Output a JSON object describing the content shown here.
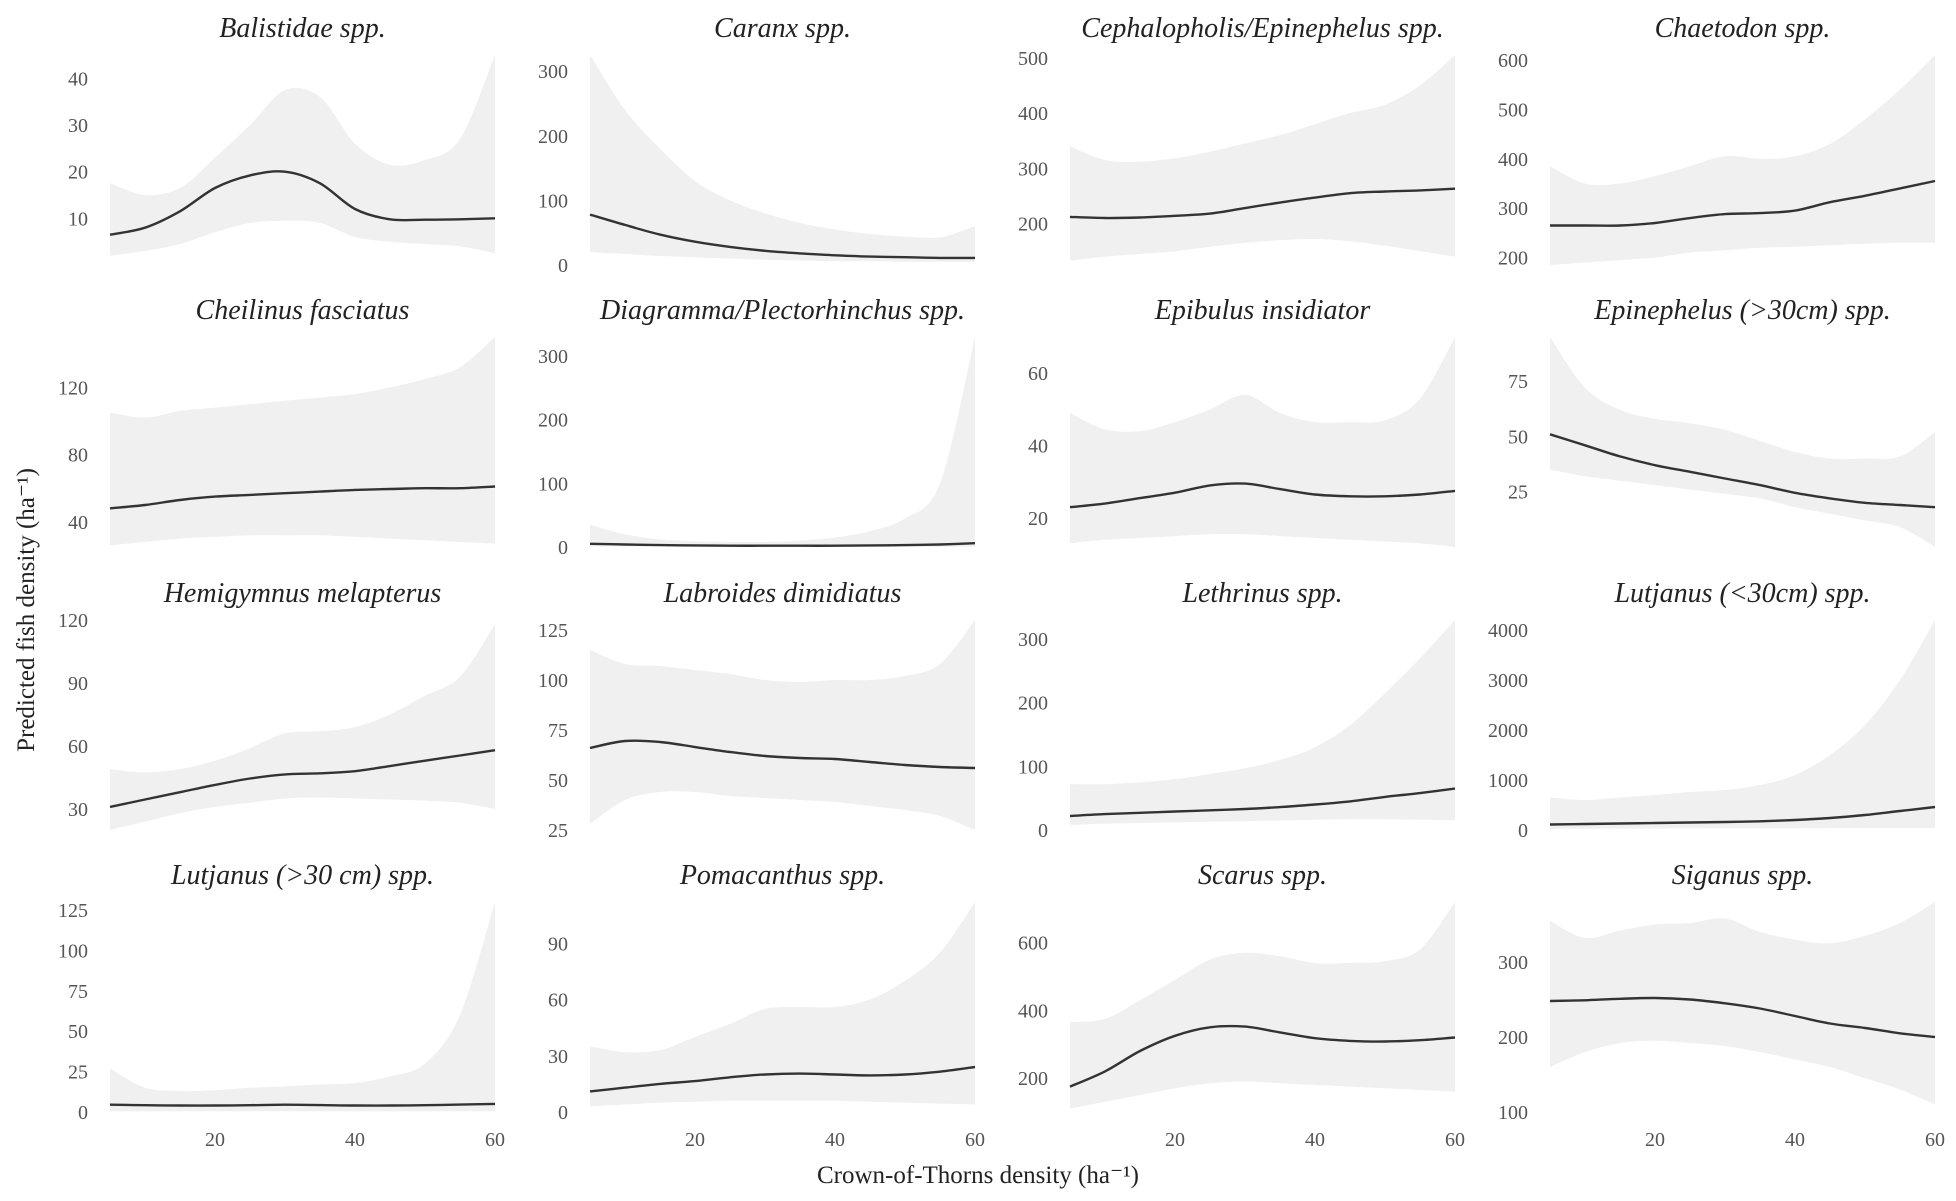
{
  "figure": {
    "xlabel": "Crown-of-Thorns density (ha⁻¹)",
    "ylabel": "Predicted fish density (ha⁻¹)",
    "colors": {
      "line": "#333333",
      "ribbon": "#f0f0f0",
      "tick": "#555555",
      "title": "#222222"
    }
  },
  "chart_data": [
    {
      "type": "line",
      "title": "Balistidae spp.",
      "xlim": [
        5,
        60
      ],
      "ylim": [
        0,
        45
      ],
      "yticks": [
        10,
        20,
        30,
        40
      ],
      "series": [
        {
          "x": [
            5,
            10,
            15,
            20,
            25,
            30,
            35,
            40,
            45,
            50,
            55,
            60
          ],
          "y": [
            6.5,
            8,
            11.5,
            16.5,
            19.2,
            20,
            17.5,
            12,
            9.8,
            9.7,
            9.8,
            10
          ],
          "lower": [
            2,
            3,
            4.5,
            7,
            9,
            9.5,
            9,
            6,
            5,
            4.5,
            4,
            2.5
          ],
          "upper": [
            17.5,
            15,
            16.5,
            23,
            30,
            37.5,
            36,
            26,
            21.5,
            22.5,
            27,
            45
          ]
        }
      ]
    },
    {
      "type": "line",
      "title": "Caranx spp.",
      "xlim": [
        5,
        60
      ],
      "ylim": [
        0,
        325
      ],
      "yticks": [
        0,
        100,
        200,
        300
      ],
      "series": [
        {
          "x": [
            5,
            10,
            15,
            20,
            25,
            30,
            35,
            40,
            45,
            50,
            55,
            60
          ],
          "y": [
            78,
            62,
            47,
            36,
            28,
            22,
            18,
            15,
            13,
            12,
            11,
            11
          ],
          "lower": [
            20,
            17,
            14,
            12,
            10,
            8,
            7,
            6,
            6,
            5,
            5,
            5
          ],
          "upper": [
            325,
            240,
            180,
            130,
            100,
            80,
            65,
            55,
            48,
            44,
            43,
            60
          ]
        }
      ]
    },
    {
      "type": "line",
      "title": "Cephalopholis/Epinephelus spp.",
      "xlim": [
        5,
        60
      ],
      "ylim": [
        125,
        505
      ],
      "yticks": [
        200,
        300,
        400,
        500
      ],
      "series": [
        {
          "x": [
            5,
            10,
            15,
            20,
            25,
            30,
            35,
            40,
            45,
            50,
            55,
            60
          ],
          "y": [
            212,
            210,
            211,
            214,
            218,
            228,
            238,
            247,
            255,
            258,
            260,
            263
          ],
          "lower": [
            133,
            140,
            145,
            150,
            158,
            165,
            170,
            172,
            168,
            160,
            150,
            140
          ],
          "upper": [
            340,
            315,
            312,
            318,
            330,
            345,
            360,
            380,
            400,
            415,
            450,
            505
          ]
        }
      ]
    },
    {
      "type": "line",
      "title": "Chaetodon spp.",
      "xlim": [
        5,
        60
      ],
      "ylim": [
        185,
        610
      ],
      "yticks": [
        200,
        300,
        400,
        500,
        600
      ],
      "series": [
        {
          "x": [
            5,
            10,
            15,
            20,
            25,
            30,
            35,
            40,
            45,
            50,
            55,
            60
          ],
          "y": [
            265,
            265,
            265,
            270,
            280,
            288,
            290,
            295,
            312,
            325,
            340,
            355
          ],
          "lower": [
            185,
            190,
            195,
            200,
            210,
            215,
            220,
            222,
            225,
            228,
            230,
            230
          ],
          "upper": [
            385,
            350,
            350,
            365,
            385,
            405,
            400,
            405,
            430,
            480,
            540,
            610
          ]
        }
      ]
    },
    {
      "type": "line",
      "title": "Cheilinus fasciatus",
      "xlim": [
        5,
        60
      ],
      "ylim": [
        25,
        150
      ],
      "yticks": [
        40,
        80,
        120
      ],
      "series": [
        {
          "x": [
            5,
            10,
            15,
            20,
            25,
            30,
            35,
            40,
            45,
            50,
            55,
            60
          ],
          "y": [
            48,
            50,
            53,
            55,
            56,
            57,
            58,
            59,
            59.5,
            60,
            60,
            61
          ],
          "lower": [
            26,
            28,
            30,
            31,
            32,
            32,
            32,
            31,
            30,
            29,
            28,
            27
          ],
          "upper": [
            105,
            102,
            106,
            108,
            110,
            112,
            114,
            116,
            120,
            125,
            132,
            150
          ]
        }
      ]
    },
    {
      "type": "line",
      "title": "Diagramma/Plectorhinchus spp.",
      "xlim": [
        5,
        60
      ],
      "ylim": [
        0,
        330
      ],
      "yticks": [
        0,
        100,
        200,
        300
      ],
      "series": [
        {
          "x": [
            5,
            10,
            15,
            20,
            25,
            30,
            35,
            40,
            45,
            50,
            55,
            60
          ],
          "y": [
            5,
            4,
            3,
            2.5,
            2,
            2,
            2,
            2,
            2.5,
            3,
            4,
            6
          ],
          "lower": [
            1,
            1,
            1,
            0.5,
            0.5,
            0.5,
            0.5,
            0.5,
            0.5,
            0.5,
            0.5,
            0.5
          ],
          "upper": [
            35,
            20,
            12,
            9,
            8,
            8,
            10,
            15,
            25,
            45,
            100,
            330
          ]
        }
      ]
    },
    {
      "type": "line",
      "title": "Epibulus insidiator",
      "xlim": [
        5,
        60
      ],
      "ylim": [
        12,
        70
      ],
      "yticks": [
        20,
        40,
        60
      ],
      "series": [
        {
          "x": [
            5,
            10,
            15,
            20,
            25,
            30,
            35,
            40,
            45,
            50,
            55,
            60
          ],
          "y": [
            23,
            24,
            25.5,
            27,
            29,
            29.5,
            28,
            26.5,
            26,
            26,
            26.5,
            27.5
          ],
          "lower": [
            13,
            14,
            14.5,
            15,
            15.5,
            15.5,
            15,
            14.5,
            14,
            13.5,
            13,
            12
          ],
          "upper": [
            49,
            44.5,
            44,
            46.5,
            50,
            54,
            49,
            46.5,
            46.5,
            47,
            53,
            70
          ]
        }
      ]
    },
    {
      "type": "line",
      "title": "Epinephelus (>30cm) spp.",
      "xlim": [
        5,
        60
      ],
      "ylim": [
        0,
        95
      ],
      "yticks": [
        25,
        50,
        75
      ],
      "series": [
        {
          "x": [
            5,
            10,
            15,
            20,
            25,
            30,
            35,
            40,
            45,
            50,
            55,
            60
          ],
          "y": [
            51,
            46,
            41,
            37,
            34,
            31,
            28,
            24.5,
            22,
            20,
            19,
            18
          ],
          "lower": [
            35,
            32,
            30,
            28,
            26,
            24,
            22,
            18,
            15,
            12,
            9,
            0
          ],
          "upper": [
            95,
            72,
            62,
            58,
            56,
            53,
            48,
            43,
            40,
            40,
            41,
            52
          ]
        }
      ]
    },
    {
      "type": "line",
      "title": "Hemigymnus melapterus",
      "xlim": [
        5,
        60
      ],
      "ylim": [
        20,
        120
      ],
      "yticks": [
        30,
        60,
        90,
        120
      ],
      "series": [
        {
          "x": [
            5,
            10,
            15,
            20,
            25,
            30,
            35,
            40,
            45,
            50,
            55,
            60
          ],
          "y": [
            31,
            34.5,
            38,
            41.5,
            44.5,
            46.5,
            47,
            48,
            50.5,
            53,
            55.5,
            58
          ],
          "lower": [
            20,
            24,
            28,
            31,
            33,
            35,
            35.5,
            35,
            34.5,
            34,
            33,
            30
          ],
          "upper": [
            49,
            47.5,
            49,
            53,
            59,
            66,
            67,
            69,
            75,
            84,
            93,
            118
          ]
        }
      ]
    },
    {
      "type": "line",
      "title": "Labroides dimidiatus",
      "xlim": [
        5,
        60
      ],
      "ylim": [
        25,
        130
      ],
      "yticks": [
        25,
        50,
        75,
        100,
        125
      ],
      "series": [
        {
          "x": [
            5,
            10,
            15,
            20,
            25,
            30,
            35,
            40,
            45,
            50,
            55,
            60
          ],
          "y": [
            66,
            69.5,
            69,
            66.5,
            64,
            62,
            61,
            60.5,
            59,
            57.5,
            56.5,
            56
          ],
          "lower": [
            28,
            40,
            44,
            44,
            42,
            41,
            40,
            39,
            37,
            35,
            32,
            25
          ],
          "upper": [
            115,
            108,
            107,
            105,
            103,
            100,
            99,
            100,
            100,
            102,
            108,
            130
          ]
        }
      ]
    },
    {
      "type": "line",
      "title": "Lethrinus spp.",
      "xlim": [
        5,
        60
      ],
      "ylim": [
        0,
        330
      ],
      "yticks": [
        0,
        100,
        200,
        300
      ],
      "series": [
        {
          "x": [
            5,
            10,
            15,
            20,
            25,
            30,
            35,
            40,
            45,
            50,
            55,
            60
          ],
          "y": [
            22,
            25,
            27,
            29,
            31,
            33,
            36,
            40,
            45,
            52,
            58,
            65
          ],
          "lower": [
            8,
            10,
            11,
            12,
            13,
            14,
            15,
            16,
            17,
            17,
            16,
            15
          ],
          "upper": [
            72,
            72,
            75,
            80,
            88,
            97,
            110,
            130,
            165,
            215,
            270,
            330
          ]
        }
      ]
    },
    {
      "type": "line",
      "title": "Lutjanus (<30cm) spp.",
      "xlim": [
        5,
        60
      ],
      "ylim": [
        0,
        4200
      ],
      "yticks": [
        0,
        1000,
        2000,
        3000,
        4000
      ],
      "series": [
        {
          "x": [
            5,
            10,
            15,
            20,
            25,
            30,
            35,
            40,
            45,
            50,
            55,
            60
          ],
          "y": [
            110,
            120,
            130,
            140,
            150,
            160,
            175,
            200,
            240,
            300,
            380,
            460
          ],
          "lower": [
            20,
            22,
            25,
            28,
            30,
            32,
            34,
            36,
            38,
            40,
            40,
            40
          ],
          "upper": [
            650,
            600,
            650,
            700,
            760,
            800,
            900,
            1100,
            1500,
            2100,
            3000,
            4200
          ]
        }
      ]
    },
    {
      "type": "line",
      "title": "Lutjanus (>30 cm) spp.",
      "xlim": [
        5,
        60
      ],
      "ylim": [
        0,
        130
      ],
      "yticks": [
        0,
        25,
        50,
        75,
        100,
        125
      ],
      "series": [
        {
          "x": [
            5,
            10,
            15,
            20,
            25,
            30,
            35,
            40,
            45,
            50,
            55,
            60
          ],
          "y": [
            4.5,
            4.2,
            4,
            4,
            4.2,
            4.5,
            4.3,
            4,
            4,
            4.2,
            4.6,
            5
          ],
          "lower": [
            0.5,
            0.5,
            0.5,
            0.5,
            0.5,
            0.5,
            0.5,
            0.5,
            0.5,
            0.5,
            0.5,
            0.5
          ],
          "upper": [
            27,
            15,
            13,
            13.5,
            15,
            16,
            17,
            18,
            22,
            30,
            60,
            130
          ]
        }
      ]
    },
    {
      "type": "line",
      "title": "Pomacanthus spp.",
      "xlim": [
        5,
        60
      ],
      "ylim": [
        0,
        112
      ],
      "yticks": [
        0,
        30,
        60,
        90
      ],
      "series": [
        {
          "x": [
            5,
            10,
            15,
            20,
            25,
            30,
            35,
            40,
            45,
            50,
            55,
            60
          ],
          "y": [
            11,
            13,
            15,
            16.5,
            18.5,
            20,
            20.5,
            20,
            19.5,
            20,
            21.5,
            24
          ],
          "lower": [
            3,
            4,
            5,
            5.5,
            6,
            6,
            6,
            6,
            5.5,
            5,
            4.5,
            4
          ],
          "upper": [
            35,
            32,
            33,
            40,
            47,
            55,
            56,
            56,
            60,
            70,
            85,
            112
          ]
        }
      ]
    },
    {
      "type": "line",
      "title": "Scarus spp.",
      "xlim": [
        5,
        60
      ],
      "ylim": [
        100,
        720
      ],
      "yticks": [
        200,
        400,
        600
      ],
      "series": [
        {
          "x": [
            5,
            10,
            15,
            20,
            25,
            30,
            35,
            40,
            45,
            50,
            55,
            60
          ],
          "y": [
            175,
            220,
            280,
            325,
            350,
            352,
            335,
            318,
            310,
            308,
            312,
            320
          ],
          "lower": [
            110,
            130,
            150,
            170,
            185,
            190,
            185,
            180,
            175,
            170,
            165,
            160
          ],
          "upper": [
            365,
            375,
            430,
            490,
            550,
            570,
            560,
            540,
            540,
            545,
            580,
            720
          ]
        }
      ]
    },
    {
      "type": "line",
      "title": "Siganus spp.",
      "xlim": [
        5,
        60
      ],
      "ylim": [
        100,
        380
      ],
      "yticks": [
        100,
        200,
        300
      ],
      "series": [
        {
          "x": [
            5,
            10,
            15,
            20,
            25,
            30,
            35,
            40,
            45,
            50,
            55,
            60
          ],
          "y": [
            248,
            249,
            251,
            252,
            250,
            245,
            238,
            228,
            218,
            212,
            205,
            200
          ],
          "lower": [
            160,
            180,
            192,
            195,
            192,
            188,
            180,
            170,
            160,
            145,
            130,
            110
          ],
          "upper": [
            355,
            332,
            342,
            350,
            352,
            358,
            340,
            330,
            325,
            335,
            352,
            380
          ]
        }
      ]
    }
  ],
  "x_axis": {
    "ticks": [
      20,
      40,
      60
    ]
  }
}
